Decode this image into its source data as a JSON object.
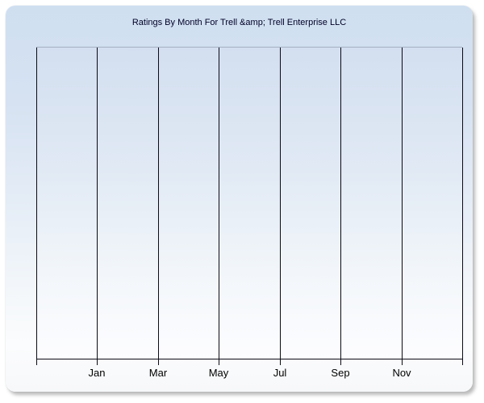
{
  "chart": {
    "title": "Ratings By Month For Trell &amp; Trell Enterprise LLC"
  },
  "chart_data": {
    "type": "line",
    "title": "Ratings By Month For Trell &amp; Trell Enterprise LLC",
    "subtitle": "",
    "xlabel": "",
    "ylabel": "",
    "categories": [
      "Jan",
      "Mar",
      "May",
      "Jul",
      "Sep",
      "Nov"
    ],
    "series": [],
    "legend": "none",
    "grid": "vertical gridlines only; empty plot with no data points rendered",
    "x_axis": {
      "tick_labels": [
        "Jan",
        "Mar",
        "May",
        "Jul",
        "Sep",
        "Nov"
      ],
      "gridline_count": 8,
      "ticks_extend_below_axis": true
    },
    "y_axis": {
      "tick_labels": []
    },
    "colors": {
      "panel_background_top": "#cfdff0",
      "panel_background_bottom": "#f7f8fa",
      "plot_background_top": "#d3dff0",
      "plot_background_bottom": "#fdfdff",
      "gridline": "#0b0b14",
      "axis_line": "#0b0b14",
      "plot_top_border": "#a6b0c3",
      "title_text": "#000026",
      "tick_label_text": "#000000",
      "page_background": "#ffffff"
    }
  }
}
